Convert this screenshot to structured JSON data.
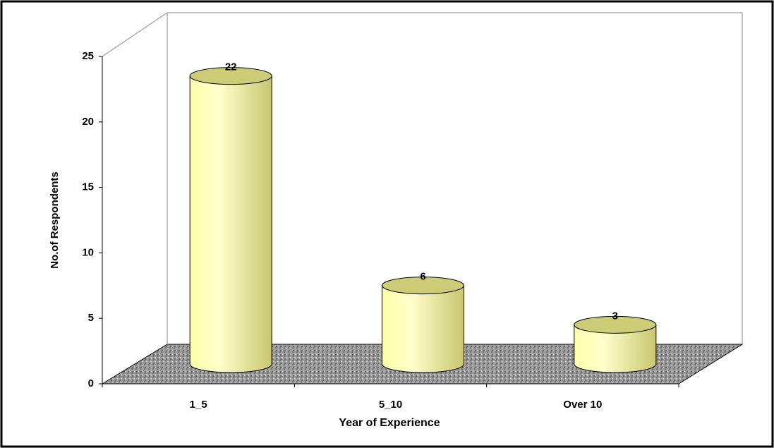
{
  "chart_data": {
    "type": "bar",
    "categories": [
      "1_5",
      "5_10",
      "Over 10"
    ],
    "values": [
      22,
      6,
      3
    ],
    "color": "#ffff99",
    "xlabel": "Year of  Experience",
    "ylabel": "No.of Respondents",
    "ylim": [
      0,
      25
    ],
    "yticks": [
      0,
      5,
      10,
      15,
      20,
      25
    ],
    "grid": false
  }
}
